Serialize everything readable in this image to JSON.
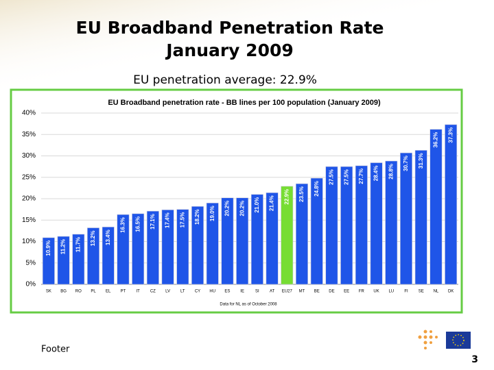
{
  "slide": {
    "title_line1": "EU Broadband Penetration Rate",
    "title_line2": "January 2009",
    "subtitle": "EU penetration average: 22.9%",
    "footer": "Footer",
    "page_number": "3"
  },
  "chart_data": {
    "type": "bar",
    "title": "EU Broadband penetration rate - BB lines per 100 population (January 2009)",
    "note": "Data for NL as of October 2008",
    "categories": [
      "SK",
      "BG",
      "RO",
      "PL",
      "EL",
      "PT",
      "IT",
      "CZ",
      "LV",
      "LT",
      "CY",
      "HU",
      "ES",
      "IE",
      "SI",
      "AT",
      "EU27",
      "MT",
      "BE",
      "DE",
      "EE",
      "FR",
      "UK",
      "LU",
      "FI",
      "SE",
      "NL",
      "DK"
    ],
    "values": [
      10.9,
      11.2,
      11.7,
      13.2,
      13.4,
      16.3,
      16.5,
      17.1,
      17.4,
      17.5,
      18.2,
      19.0,
      20.2,
      20.2,
      21.0,
      21.4,
      22.9,
      23.5,
      24.8,
      27.5,
      27.5,
      27.7,
      28.4,
      28.8,
      30.7,
      31.3,
      36.2,
      37.3
    ],
    "value_labels": [
      "10.9%",
      "11.2%",
      "11.7%",
      "13.2%",
      "13.4%",
      "16.3%",
      "16.5%",
      "17.1%",
      "17.4%",
      "17.5%",
      "18.2%",
      "19.0%",
      "20.2%",
      "20.2%",
      "21.0%",
      "21.4%",
      "22.9%",
      "23.5%",
      "24.8%",
      "27.5%",
      "27.5%",
      "27.7%",
      "28.4%",
      "28.8%",
      "30.7%",
      "31.3%",
      "36.2%",
      "37.3%"
    ],
    "colors": [
      "#1f55e8",
      "#1f55e8",
      "#1f55e8",
      "#1f55e8",
      "#1f55e8",
      "#1f55e8",
      "#1f55e8",
      "#1f55e8",
      "#1f55e8",
      "#1f55e8",
      "#1f55e8",
      "#1f55e8",
      "#1f55e8",
      "#1f55e8",
      "#1f55e8",
      "#1f55e8",
      "#77dd33",
      "#1f55e8",
      "#1f55e8",
      "#1f55e8",
      "#1f55e8",
      "#1f55e8",
      "#1f55e8",
      "#1f55e8",
      "#1f55e8",
      "#1f55e8",
      "#1f55e8",
      "#1f55e8"
    ],
    "ylim": [
      0,
      40
    ],
    "yticks": [
      {
        "value": 0,
        "label": "0%"
      },
      {
        "value": 5,
        "label": "5%"
      },
      {
        "value": 10,
        "label": "10%"
      },
      {
        "value": 15,
        "label": "15%"
      },
      {
        "value": 20,
        "label": "20%"
      },
      {
        "value": 25,
        "label": "25%"
      },
      {
        "value": 30,
        "label": "30%"
      },
      {
        "value": 35,
        "label": "35%"
      },
      {
        "value": 40,
        "label": "40%"
      }
    ],
    "grid": true
  }
}
